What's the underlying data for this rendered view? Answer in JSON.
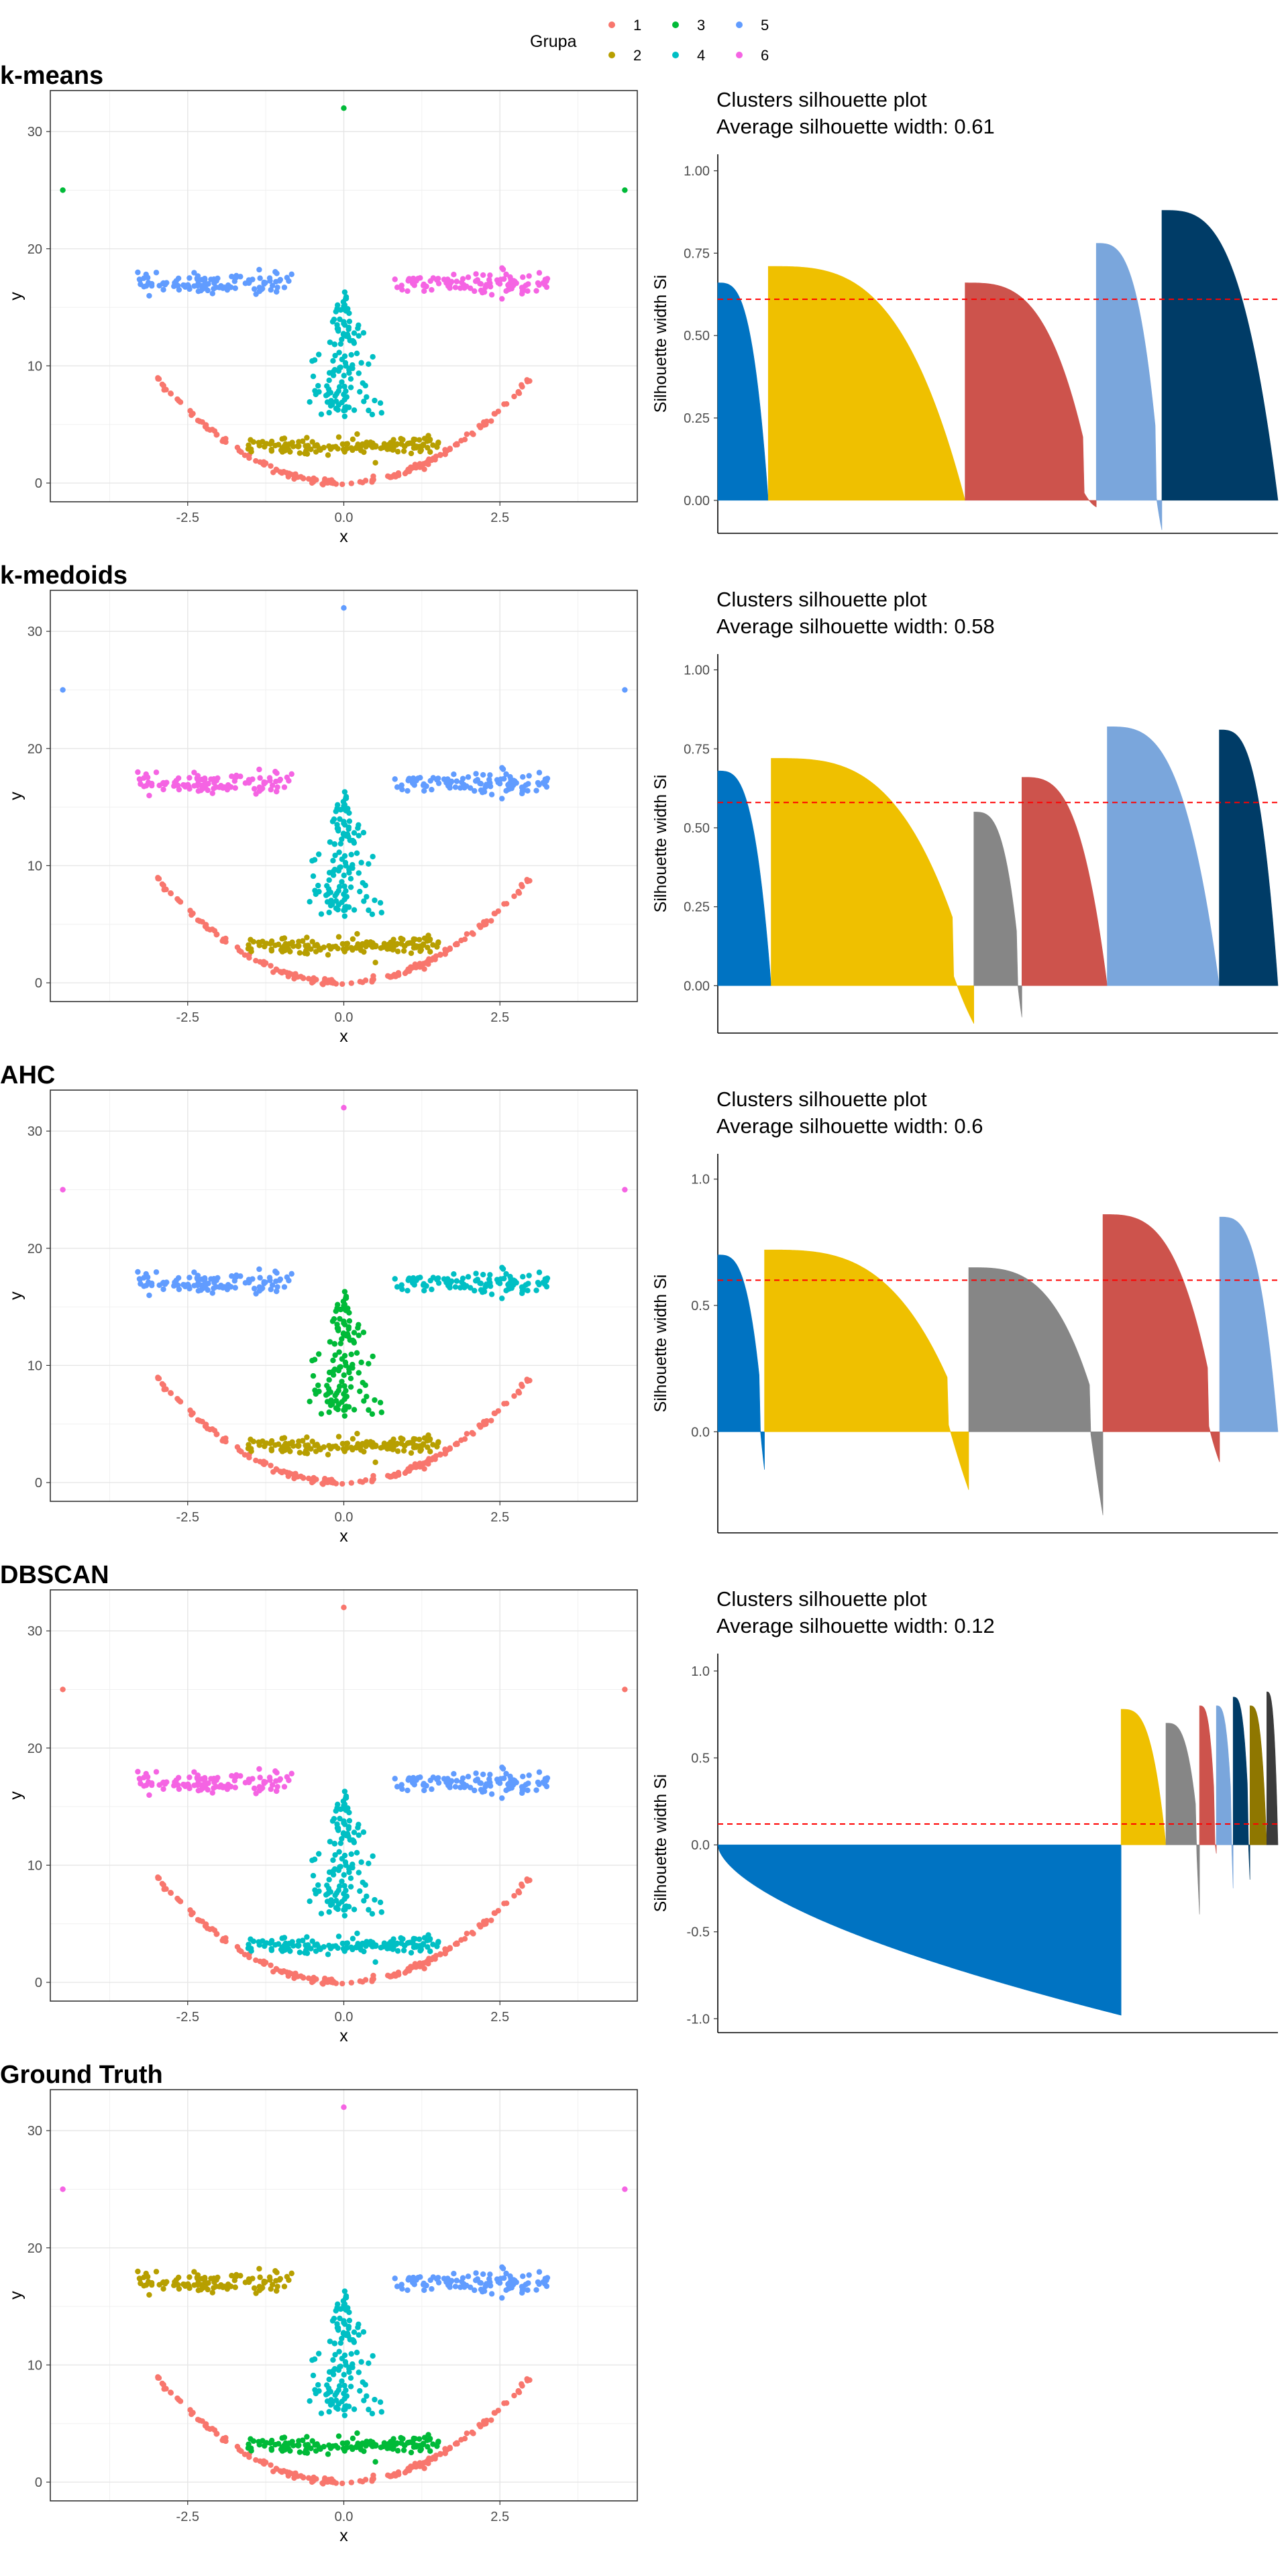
{
  "legend": {
    "title": "Grupa",
    "items": [
      {
        "label": "1",
        "color": "#F8766D"
      },
      {
        "label": "2",
        "color": "#B79F00"
      },
      {
        "label": "3",
        "color": "#00BA38"
      },
      {
        "label": "4",
        "color": "#00BFC4"
      },
      {
        "label": "5",
        "color": "#619CFF"
      },
      {
        "label": "6",
        "color": "#F564E3"
      }
    ]
  },
  "chart_data": [
    {
      "type": "scatter",
      "title": "k-means",
      "xlabel": "x",
      "ylabel": "y",
      "xlim": [
        -4.7,
        4.7
      ],
      "ylim": [
        -1.6,
        33.5
      ],
      "xticks": [
        -2.5,
        0,
        2.5
      ],
      "xtick_labels": [
        "-2.5",
        "0.0",
        "2.5"
      ],
      "yticks": [
        0,
        10,
        20,
        30
      ],
      "ytick_labels": [
        "0",
        "10",
        "20",
        "30"
      ],
      "grid": true,
      "groups": {
        "mouth": 2,
        "nose": 4,
        "eye_left": 5,
        "eye_right": 6,
        "outliers": 3,
        "bottom_arc": 1
      }
    },
    {
      "type": "bar",
      "title": "Clusters silhouette plot\n Average silhouette width: 0.61",
      "ylabel": "Silhouette width Si",
      "ylim": [
        -0.1,
        1.05
      ],
      "yticks": [
        0,
        0.25,
        0.5,
        0.75,
        1.0
      ],
      "ytick_labels": [
        "0.00",
        "0.25",
        "0.50",
        "0.75",
        "1.00"
      ],
      "average": 0.61,
      "clusters": [
        {
          "size": 10,
          "max": 0.66,
          "min": 0.0,
          "color": "#0073C2"
        },
        {
          "size": 39,
          "max": 0.71,
          "min": 0.0,
          "color": "#EFC000"
        },
        {
          "size": 26,
          "max": 0.66,
          "min": -0.02,
          "color": "#CD534C"
        },
        {
          "size": 13,
          "max": 0.78,
          "min": -0.09,
          "color": "#7AA6DC"
        },
        {
          "size": 23,
          "max": 0.88,
          "min": 0.0,
          "color": "#003C67"
        }
      ]
    },
    {
      "type": "scatter",
      "title": "k-medoids",
      "xlabel": "x",
      "ylabel": "y",
      "xlim": [
        -4.7,
        4.7
      ],
      "ylim": [
        -1.6,
        33.5
      ],
      "xticks": [
        -2.5,
        0,
        2.5
      ],
      "xtick_labels": [
        "-2.5",
        "0.0",
        "2.5"
      ],
      "yticks": [
        0,
        10,
        20,
        30
      ],
      "ytick_labels": [
        "0",
        "10",
        "20",
        "30"
      ],
      "grid": true,
      "groups": {
        "mouth": 2,
        "nose": 4,
        "eye_left": 6,
        "eye_right": 5,
        "outliers": 5,
        "bottom_arc": 1
      }
    },
    {
      "type": "bar",
      "title": "Clusters silhouette plot\n Average silhouette width: 0.58",
      "ylabel": "Silhouette width Si",
      "ylim": [
        -0.15,
        1.05
      ],
      "yticks": [
        0,
        0.25,
        0.5,
        0.75,
        1.0
      ],
      "ytick_labels": [
        "0.00",
        "0.25",
        "0.50",
        "0.75",
        "1.00"
      ],
      "average": 0.58,
      "clusters": [
        {
          "size": 10,
          "max": 0.68,
          "min": 0.0,
          "color": "#0073C2"
        },
        {
          "size": 38,
          "max": 0.72,
          "min": -0.12,
          "color": "#EFC000"
        },
        {
          "size": 9,
          "max": 0.55,
          "min": -0.1,
          "color": "#868686"
        },
        {
          "size": 16,
          "max": 0.66,
          "min": 0.0,
          "color": "#CD534C"
        },
        {
          "size": 21,
          "max": 0.82,
          "min": 0.0,
          "color": "#7AA6DC"
        },
        {
          "size": 11,
          "max": 0.81,
          "min": 0.0,
          "color": "#003C67"
        }
      ]
    },
    {
      "type": "scatter",
      "title": "AHC",
      "xlabel": "x",
      "ylabel": "y",
      "xlim": [
        -4.7,
        4.7
      ],
      "ylim": [
        -1.6,
        33.5
      ],
      "xticks": [
        -2.5,
        0,
        2.5
      ],
      "xtick_labels": [
        "-2.5",
        "0.0",
        "2.5"
      ],
      "yticks": [
        0,
        10,
        20,
        30
      ],
      "ytick_labels": [
        "0",
        "10",
        "20",
        "30"
      ],
      "grid": true,
      "groups": {
        "mouth": 2,
        "nose": 3,
        "eye_left": 5,
        "eye_right": 4,
        "outliers": 6,
        "bottom_arc": 1
      }
    },
    {
      "type": "bar",
      "title": "Clusters silhouette plot\n Average silhouette width: 0.6",
      "ylabel": "Silhouette width Si",
      "ylim": [
        -0.4,
        1.1
      ],
      "yticks": [
        0,
        0.5,
        1.0
      ],
      "ytick_labels": [
        "0.0",
        "0.5",
        "1.0"
      ],
      "average": 0.6,
      "clusters": [
        {
          "size": 8,
          "max": 0.7,
          "min": -0.15,
          "color": "#0073C2"
        },
        {
          "size": 35,
          "max": 0.72,
          "min": -0.23,
          "color": "#EFC000"
        },
        {
          "size": 23,
          "max": 0.65,
          "min": -0.33,
          "color": "#868686"
        },
        {
          "size": 20,
          "max": 0.86,
          "min": -0.12,
          "color": "#CD534C"
        },
        {
          "size": 10,
          "max": 0.85,
          "min": 0.0,
          "color": "#7AA6DC"
        }
      ]
    },
    {
      "type": "scatter",
      "title": "DBSCAN",
      "xlabel": "x",
      "ylabel": "y",
      "xlim": [
        -4.7,
        4.7
      ],
      "ylim": [
        -1.6,
        33.5
      ],
      "xticks": [
        -2.5,
        0,
        2.5
      ],
      "xtick_labels": [
        "-2.5",
        "0.0",
        "2.5"
      ],
      "yticks": [
        0,
        10,
        20,
        30
      ],
      "ytick_labels": [
        "0",
        "10",
        "20",
        "30"
      ],
      "grid": true,
      "groups": {
        "mouth": 4,
        "nose": 4,
        "eye_left": 6,
        "eye_right": 5,
        "outliers": 1,
        "bottom_arc": 1
      }
    },
    {
      "type": "bar",
      "title": "Clusters silhouette plot\n Average silhouette width: 0.12",
      "ylabel": "Silhouette width Si",
      "ylim": [
        -1.08,
        1.1
      ],
      "yticks": [
        -1.0,
        -0.5,
        0,
        0.5,
        1.0
      ],
      "ytick_labels": [
        "-1.0",
        "-0.5",
        "0.0",
        "0.5",
        "1.0"
      ],
      "average": 0.12,
      "clusters": [
        {
          "size": 72,
          "max": 0.0,
          "min": -0.98,
          "color": "#0073C2"
        },
        {
          "size": 8,
          "max": 0.78,
          "min": 0.0,
          "color": "#EFC000"
        },
        {
          "size": 6,
          "max": 0.7,
          "min": -0.4,
          "color": "#868686"
        },
        {
          "size": 3,
          "max": 0.8,
          "min": -0.05,
          "color": "#CD534C"
        },
        {
          "size": 3,
          "max": 0.8,
          "min": -0.25,
          "color": "#7AA6DC"
        },
        {
          "size": 3,
          "max": 0.85,
          "min": -0.2,
          "color": "#003C67"
        },
        {
          "size": 3,
          "max": 0.8,
          "min": 0.0,
          "color": "#8F7700"
        },
        {
          "size": 2,
          "max": 0.88,
          "min": 0.0,
          "color": "#3B3B3B"
        }
      ]
    },
    {
      "type": "scatter",
      "title": "Ground Truth",
      "xlabel": "x",
      "ylabel": "y",
      "xlim": [
        -4.7,
        4.7
      ],
      "ylim": [
        -1.6,
        33.5
      ],
      "xticks": [
        -2.5,
        0,
        2.5
      ],
      "xtick_labels": [
        "-2.5",
        "0.0",
        "2.5"
      ],
      "yticks": [
        0,
        10,
        20,
        30
      ],
      "ytick_labels": [
        "0",
        "10",
        "20",
        "30"
      ],
      "grid": true,
      "groups": {
        "mouth": 3,
        "nose": 4,
        "eye_left": 2,
        "eye_right": 5,
        "outliers": 6,
        "bottom_arc": 1
      }
    }
  ]
}
